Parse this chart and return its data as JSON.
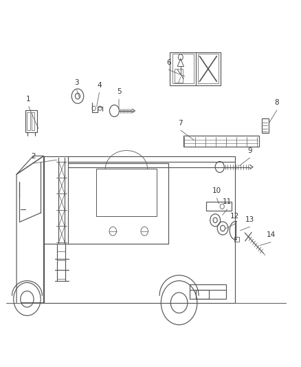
{
  "bg_color": "#ffffff",
  "line_color": "#555555",
  "text_color": "#333333",
  "fig_width": 4.38,
  "fig_height": 5.33,
  "dpi": 100,
  "label_fontsize": 7.5,
  "leaders": {
    "1": {
      "label": [
        0.095,
        0.71
      ],
      "target": [
        0.13,
        0.645
      ]
    },
    "2": {
      "label": [
        0.11,
        0.555
      ],
      "target": [
        0.195,
        0.565
      ]
    },
    "3": {
      "label": [
        0.255,
        0.755
      ],
      "target": [
        0.265,
        0.73
      ]
    },
    "4": {
      "label": [
        0.33,
        0.748
      ],
      "target": [
        0.32,
        0.705
      ]
    },
    "5": {
      "label": [
        0.395,
        0.73
      ],
      "target": [
        0.395,
        0.698
      ]
    },
    "6": {
      "label": [
        0.56,
        0.81
      ],
      "target": [
        0.62,
        0.79
      ]
    },
    "7": {
      "label": [
        0.6,
        0.645
      ],
      "target": [
        0.65,
        0.615
      ]
    },
    "8": {
      "label": [
        0.92,
        0.7
      ],
      "target": [
        0.89,
        0.66
      ]
    },
    "9": {
      "label": [
        0.83,
        0.57
      ],
      "target": [
        0.79,
        0.545
      ]
    },
    "10": {
      "label": [
        0.72,
        0.46
      ],
      "target": [
        0.73,
        0.44
      ]
    },
    "11": {
      "label": [
        0.755,
        0.43
      ],
      "target": [
        0.735,
        0.41
      ]
    },
    "12": {
      "label": [
        0.78,
        0.39
      ],
      "target": [
        0.745,
        0.375
      ]
    },
    "13": {
      "label": [
        0.83,
        0.382
      ],
      "target": [
        0.792,
        0.37
      ]
    },
    "14": {
      "label": [
        0.9,
        0.34
      ],
      "target": [
        0.858,
        0.33
      ]
    }
  }
}
